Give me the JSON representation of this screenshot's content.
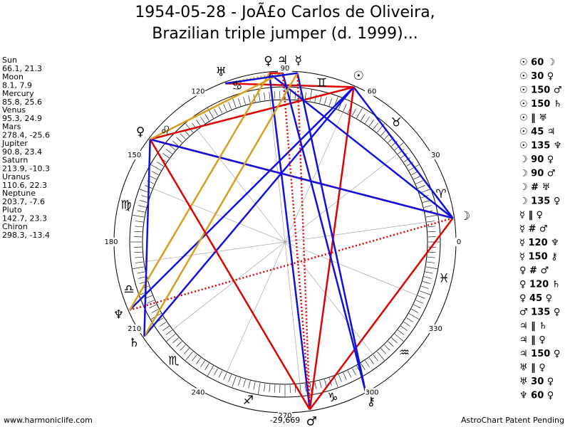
{
  "header": {
    "title_lines": [
      "1954-05-28 - JoÃ£o Carlos de Oliveira,",
      "Brazilian triple jumper (d. 1999)..."
    ]
  },
  "planets": [
    {
      "name": "Sun",
      "position": "66.1, 21.3",
      "glyph": "☉"
    },
    {
      "name": "Moon",
      "position": "8.1, 7.9",
      "glyph": "☽"
    },
    {
      "name": "Mercury",
      "position": "85.8, 25.6",
      "glyph": "☿"
    },
    {
      "name": "Venus",
      "position": "95.3, 24.9",
      "glyph": "♀"
    },
    {
      "name": "Mars",
      "position": "278.4, -25.6",
      "glyph": "♂"
    },
    {
      "name": "Jupiter",
      "position": "90.8, 23.4",
      "glyph": "♃"
    },
    {
      "name": "Saturn",
      "position": "213.9, -10.3",
      "glyph": "♄"
    },
    {
      "name": "Uranus",
      "position": "110.6, 22.3",
      "glyph": "♅"
    },
    {
      "name": "Neptune",
      "position": "203.7, -7.6",
      "glyph": "♆"
    },
    {
      "name": "Pluto",
      "position": "142.7, 23.3",
      "glyph": "♀"
    },
    {
      "name": "Chiron",
      "position": "298.3, -13.4",
      "glyph": "⚷"
    }
  ],
  "wheel": {
    "degree_labels": [
      0,
      30,
      60,
      90,
      120,
      150,
      180,
      210,
      240,
      270,
      300,
      330
    ],
    "sign_glyphs": [
      "♈",
      "♉",
      "♊",
      "♋",
      "♌",
      "♍",
      "♎",
      "♏",
      "♐",
      "♑",
      "♒",
      "♓"
    ],
    "bottom_label": "-29,669"
  },
  "aspects": [
    "☉ 60 ☽",
    "☉ 30 ♀",
    "☉ 150 ♂",
    "☉ 150 ♄",
    "☉ ‖ ♅",
    "☉ 45 ♃",
    "☉ 135 ♆",
    "☽ 90 ♀",
    "☽ 90 ♂",
    "☽ # ♅",
    "☽ 135 ♀",
    "☿ ‖ ♀",
    "☿ # ♂",
    "☿ 120 ♆",
    "☿ 150 ⚷",
    "♀ # ♂",
    "♀ 120 ♄",
    "♀ 45 ♀",
    "♂ 135 ♀",
    "♃ ‖ ♄",
    "♃ ‖ ♀",
    "♃ 150 ♀",
    "♅ ‖ ♀",
    "♅ 30 ♀",
    "♆ 60 ♀"
  ],
  "footer": {
    "left": "www.harmoniclife.com",
    "right": "AstroChart Patent Pending"
  }
}
